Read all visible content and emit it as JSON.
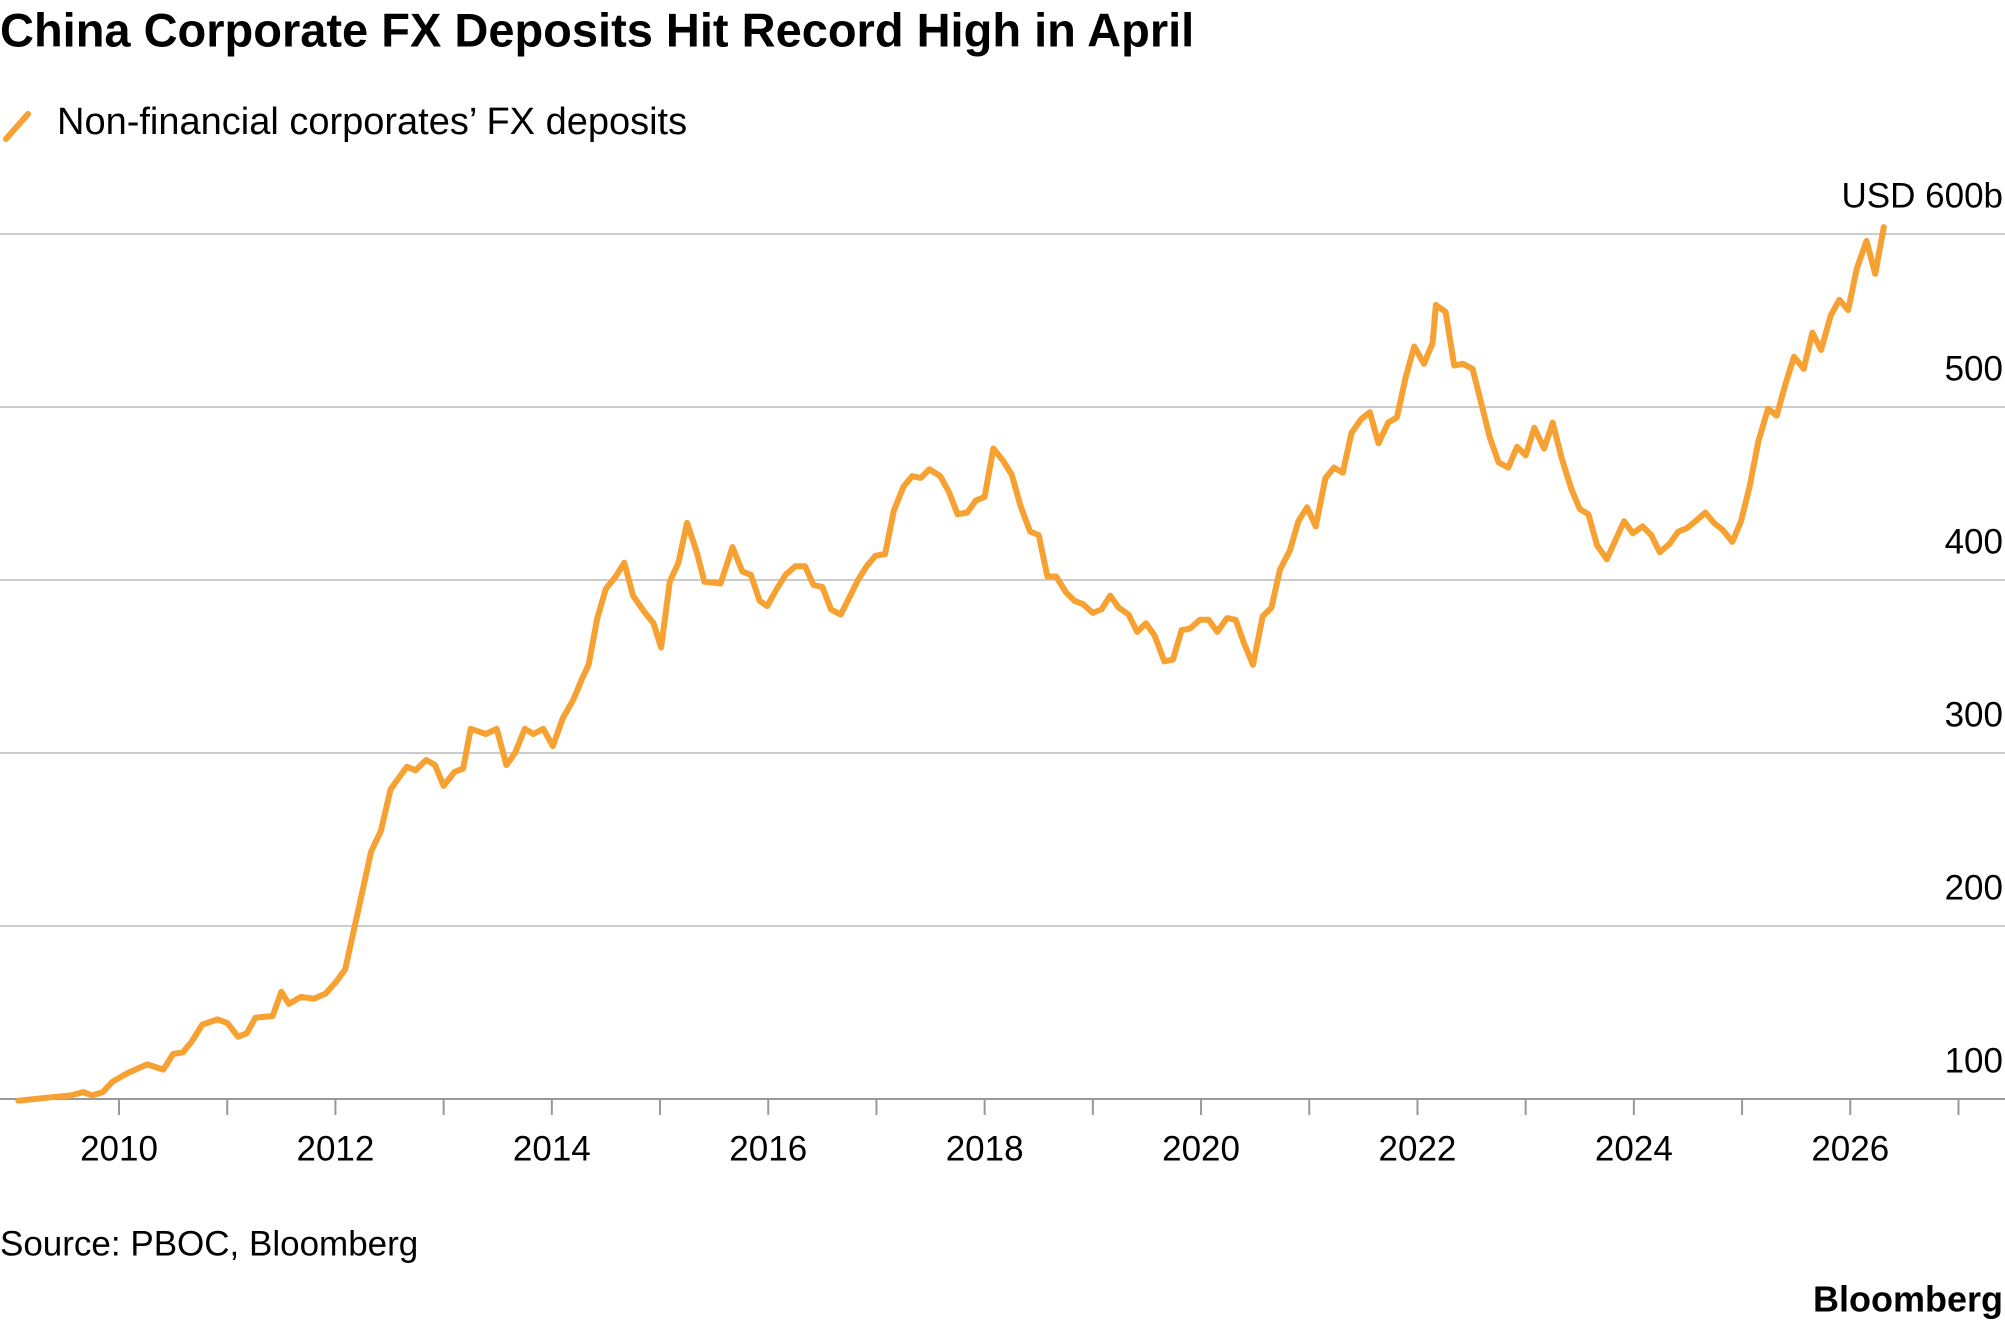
{
  "chart_data": {
    "type": "line",
    "title": "China Corporate FX Deposits Hit Record High in April",
    "source": "Source: PBOC, Bloomberg",
    "brand": "Bloomberg",
    "x": [
      2009.07,
      2009.37,
      2009.55,
      2009.67,
      2009.75,
      2009.85,
      2009.94,
      2010.08,
      2010.26,
      2010.41,
      2010.5,
      2010.59,
      2010.67,
      2010.77,
      2010.91,
      2011.0,
      2011.1,
      2011.18,
      2011.26,
      2011.42,
      2011.5,
      2011.57,
      2011.68,
      2011.8,
      2011.91,
      2012.01,
      2012.09,
      2012.21,
      2012.33,
      2012.42,
      2012.51,
      2012.66,
      2012.74,
      2012.84,
      2012.92,
      2013.0,
      2013.1,
      2013.18,
      2013.25,
      2013.39,
      2013.49,
      2013.58,
      2013.66,
      2013.75,
      2013.83,
      2013.92,
      2014.01,
      2014.1,
      2014.2,
      2014.28,
      2014.34,
      2014.42,
      2014.5,
      2014.59,
      2014.67,
      2014.75,
      2014.85,
      2014.94,
      2015.01,
      2015.09,
      2015.17,
      2015.25,
      2015.34,
      2015.41,
      2015.56,
      2015.67,
      2015.76,
      2015.84,
      2015.92,
      2015.99,
      2016.08,
      2016.16,
      2016.25,
      2016.34,
      2016.42,
      2016.5,
      2016.58,
      2016.67,
      2016.75,
      2016.83,
      2016.91,
      2016.99,
      2017.08,
      2017.16,
      2017.25,
      2017.33,
      2017.41,
      2017.49,
      2017.59,
      2017.67,
      2017.75,
      2017.84,
      2017.92,
      2018.0,
      2018.08,
      2018.17,
      2018.25,
      2018.33,
      2018.42,
      2018.5,
      2018.58,
      2018.66,
      2018.75,
      2018.83,
      2018.91,
      2019.0,
      2019.08,
      2019.16,
      2019.24,
      2019.33,
      2019.41,
      2019.49,
      2019.57,
      2019.66,
      2019.74,
      2019.82,
      2019.9,
      2019.99,
      2020.07,
      2020.15,
      2020.24,
      2020.32,
      2020.4,
      2020.48,
      2020.57,
      2020.65,
      2020.73,
      2020.82,
      2020.9,
      2020.98,
      2021.06,
      2021.15,
      2021.23,
      2021.31,
      2021.39,
      2021.48,
      2021.56,
      2021.64,
      2021.73,
      2021.81,
      2021.89,
      2021.97,
      2022.06,
      2022.14,
      2022.17,
      2022.26,
      2022.34,
      2022.42,
      2022.51,
      2022.59,
      2022.67,
      2022.75,
      2022.84,
      2022.92,
      2023.0,
      2023.08,
      2023.17,
      2023.25,
      2023.33,
      2023.42,
      2023.5,
      2023.58,
      2023.66,
      2023.75,
      2023.83,
      2023.91,
      2023.99,
      2024.08,
      2024.16,
      2024.24,
      2024.33,
      2024.41,
      2024.49,
      2024.57,
      2024.66,
      2024.74,
      2024.82,
      2024.91,
      2024.99,
      2025.07,
      2025.15,
      2025.24,
      2025.32,
      2025.4,
      2025.48,
      2025.57,
      2025.65,
      2025.73,
      2025.82,
      2025.9,
      2025.98,
      2026.06,
      2026.15,
      2026.23,
      2026.31
    ],
    "series": [
      {
        "name": "Non-financial corporates’ FX deposits",
        "color": "#f6a131",
        "values": [
          99,
          101,
          102,
          104,
          102,
          104,
          110,
          115,
          120,
          117,
          126,
          127,
          133,
          143,
          146,
          144,
          136,
          138,
          147,
          148,
          162,
          155,
          159,
          158,
          161,
          168,
          175,
          209,
          243,
          255,
          279,
          292,
          290,
          296,
          293,
          281,
          289,
          291,
          314,
          311,
          314,
          293,
          300,
          314,
          311,
          314,
          304,
          320,
          331,
          343,
          351,
          378,
          395,
          402,
          410,
          391,
          382,
          375,
          361,
          399,
          410,
          433,
          416,
          399,
          398,
          419,
          405,
          403,
          388,
          385,
          395,
          403,
          408,
          408,
          397,
          396,
          383,
          380,
          390,
          400,
          408,
          414,
          415,
          440,
          454,
          460,
          459,
          464,
          460,
          451,
          438,
          439,
          446,
          448,
          476,
          469,
          461,
          443,
          428,
          426,
          402,
          402,
          393,
          388,
          386,
          381,
          383,
          391,
          384,
          380,
          370,
          375,
          368,
          353,
          354,
          371,
          372,
          377,
          377,
          370,
          378,
          377,
          363,
          351,
          379,
          384,
          406,
          417,
          434,
          442,
          431,
          459,
          465,
          462,
          485,
          493,
          497,
          479,
          491,
          494,
          517,
          535,
          525,
          537,
          559,
          555,
          524,
          525,
          522,
          502,
          482,
          468,
          465,
          477,
          472,
          488,
          476,
          491,
          471,
          453,
          441,
          438,
          420,
          412,
          423,
          434,
          427,
          431,
          426,
          416,
          421,
          428,
          430,
          434,
          439,
          433,
          429,
          422,
          434,
          454,
          480,
          499,
          495,
          513,
          529,
          522,
          543,
          533,
          553,
          562,
          556,
          580,
          596,
          577,
          604
        ]
      }
    ],
    "xlim": [
      2008.9,
      2027.43
    ],
    "xticks": [
      2010,
      2012,
      2014,
      2016,
      2018,
      2020,
      2022,
      2024,
      2026
    ],
    "xticks_minor": [
      2011,
      2013,
      2015,
      2017,
      2019,
      2021,
      2023,
      2025,
      2027
    ],
    "ylim": [
      100,
      600
    ],
    "yticks": [
      100,
      200,
      300,
      400,
      500,
      {
        "value": 600,
        "label": "USD 600b"
      }
    ],
    "grid": true
  }
}
